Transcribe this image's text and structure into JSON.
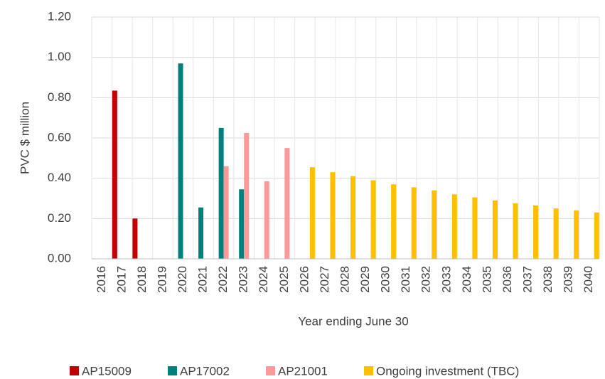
{
  "chart_data": {
    "type": "bar",
    "x_label": "Year ending June 30",
    "y_label": "PVC $ million",
    "categories": [
      "2016",
      "2017",
      "2018",
      "2019",
      "2020",
      "2021",
      "2022",
      "2023",
      "2024",
      "2025",
      "2026",
      "2027",
      "2028",
      "2029",
      "2030",
      "2031",
      "2032",
      "2033",
      "2034",
      "2035",
      "2036",
      "2037",
      "2038",
      "2039",
      "2040"
    ],
    "series": [
      {
        "name": "AP15009",
        "color": "#c00000",
        "values": [
          null,
          0.835,
          0.2,
          null,
          null,
          null,
          null,
          null,
          null,
          null,
          null,
          null,
          null,
          null,
          null,
          null,
          null,
          null,
          null,
          null,
          null,
          null,
          null,
          null,
          null
        ]
      },
      {
        "name": "AP17002",
        "color": "#00807a",
        "values": [
          null,
          null,
          null,
          null,
          0.97,
          0.255,
          0.65,
          0.345,
          null,
          null,
          null,
          null,
          null,
          null,
          null,
          null,
          null,
          null,
          null,
          null,
          null,
          null,
          null,
          null,
          null
        ]
      },
      {
        "name": "AP21001",
        "color": "#ff9999",
        "values": [
          null,
          null,
          null,
          null,
          null,
          null,
          0.46,
          0.625,
          0.385,
          0.55,
          null,
          null,
          null,
          null,
          null,
          null,
          null,
          null,
          null,
          null,
          null,
          null,
          null,
          null,
          null
        ]
      },
      {
        "name": "Ongoing investment (TBC)",
        "color": "#ffc000",
        "values": [
          null,
          null,
          null,
          null,
          null,
          null,
          null,
          null,
          null,
          null,
          0.455,
          0.43,
          0.41,
          0.39,
          0.37,
          0.355,
          0.34,
          0.32,
          0.305,
          0.29,
          0.275,
          0.265,
          0.25,
          0.24,
          0.23
        ]
      }
    ],
    "ylim": [
      0,
      1.2
    ],
    "yticks": [
      {
        "value": 0,
        "label": "0.00"
      },
      {
        "value": 0.2,
        "label": "0.20"
      },
      {
        "value": 0.4,
        "label": "0.40"
      },
      {
        "value": 0.6,
        "label": "0.60"
      },
      {
        "value": 0.8,
        "label": "0.80"
      },
      {
        "value": 1,
        "label": "1.00"
      },
      {
        "value": 1.2,
        "label": "1.20"
      }
    ],
    "grid": true,
    "legend": "bottom"
  }
}
